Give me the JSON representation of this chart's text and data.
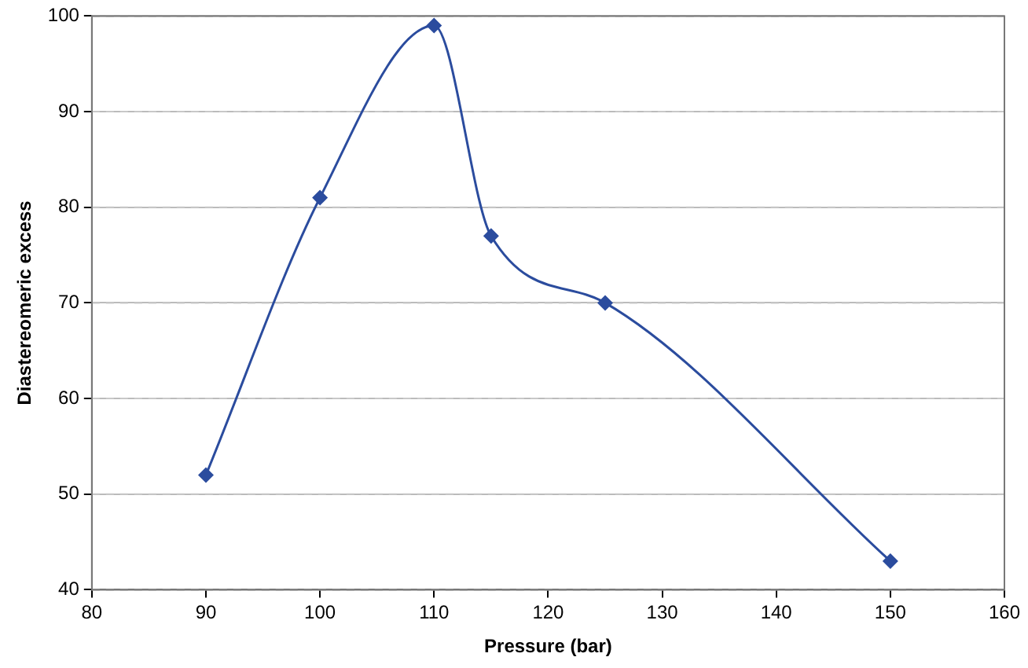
{
  "chart_data": {
    "type": "line",
    "xlabel": "Pressure (bar)",
    "ylabel": "Diastereomeric excess",
    "x": [
      90,
      100,
      110,
      115,
      125,
      150
    ],
    "series": [
      {
        "color": "#2b4c9e",
        "values": [
          52,
          81,
          99,
          77,
          70,
          43
        ]
      }
    ],
    "xlim": [
      80,
      160
    ],
    "xticks": [
      80,
      90,
      100,
      110,
      120,
      130,
      140,
      150,
      160
    ],
    "ylim": [
      40,
      100
    ],
    "yticks": [
      40,
      50,
      60,
      70,
      80,
      90,
      100
    ],
    "grid": "y",
    "legend": false,
    "marker": "diamond",
    "line_style": "solid"
  }
}
